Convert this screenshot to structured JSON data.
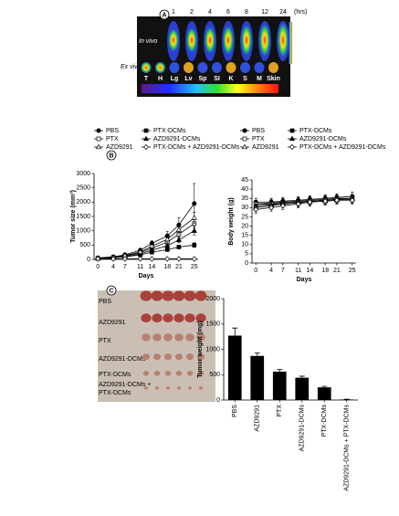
{
  "panel_labels": [
    "A",
    "B",
    "C"
  ],
  "panel_a": {
    "time_labels": [
      "1",
      "2",
      "4",
      "6",
      "8",
      "12",
      "24"
    ],
    "time_unit": "(hrs)",
    "row_labels": [
      "In vivo",
      "Ex vivo"
    ],
    "organ_labels": [
      "T",
      "H",
      "Lg",
      "Lv",
      "Sp",
      "SI",
      "K",
      "S",
      "M",
      "Skin"
    ]
  },
  "panel_c": {
    "labels": [
      "PBS",
      "AZD9291",
      "PTX",
      "AZD9291-DCMs",
      "PTX-DCMs",
      "AZD9291-DCMs +",
      "PTX-DCMs"
    ]
  },
  "chart_data": [
    {
      "type": "line",
      "ylabel": "Tumor size (mm³)",
      "xlabel": "Days",
      "x": [
        0,
        4,
        7,
        11,
        14,
        18,
        21,
        25
      ],
      "xlim": [
        -1,
        26
      ],
      "xticks": [
        0,
        4,
        7,
        11,
        14,
        18,
        21,
        25
      ],
      "ylim": [
        0,
        3000
      ],
      "yticks": [
        0,
        500,
        1000,
        1500,
        2000,
        2500,
        3000
      ],
      "series": [
        {
          "name": "PBS",
          "marker": "circle",
          "filled": true,
          "color": "#000",
          "values": [
            50,
            90,
            160,
            320,
            560,
            820,
            1200,
            1950
          ],
          "errors": [
            10,
            20,
            30,
            60,
            90,
            150,
            250,
            700
          ]
        },
        {
          "name": "PTX-DCMs",
          "marker": "square",
          "filled": true,
          "color": "#000",
          "values": [
            30,
            50,
            90,
            160,
            250,
            340,
            430,
            500
          ],
          "errors": [
            5,
            10,
            20,
            30,
            40,
            50,
            60,
            80
          ]
        },
        {
          "name": "PTX",
          "marker": "square",
          "filled": false,
          "color": "#000",
          "values": [
            40,
            70,
            120,
            230,
            390,
            600,
            880,
            1250
          ],
          "errors": [
            8,
            15,
            25,
            40,
            60,
            90,
            130,
            150
          ]
        },
        {
          "name": "AZD9291-DCMs",
          "marker": "triangle",
          "filled": true,
          "color": "#000",
          "values": [
            35,
            60,
            100,
            190,
            320,
            480,
            680,
            1000
          ],
          "errors": [
            5,
            10,
            20,
            30,
            50,
            70,
            100,
            150
          ]
        },
        {
          "name": "AZD9291",
          "marker": "triangle",
          "filled": false,
          "color": "#000",
          "values": [
            40,
            75,
            135,
            260,
            460,
            700,
            1040,
            1450
          ],
          "errors": [
            8,
            15,
            25,
            45,
            70,
            100,
            150,
            200
          ]
        },
        {
          "name": "PTX-DCMs + AZD9291-DCMs",
          "marker": "diamond",
          "filled": false,
          "color": "#000",
          "values": [
            20,
            20,
            20,
            20,
            20,
            20,
            20,
            20
          ],
          "errors": [
            3,
            3,
            3,
            3,
            3,
            3,
            3,
            3
          ]
        }
      ]
    },
    {
      "type": "line",
      "ylabel": "Body weight (g)",
      "xlabel": "Days",
      "x": [
        0,
        4,
        7,
        11,
        14,
        18,
        21,
        25
      ],
      "xlim": [
        -1,
        26
      ],
      "xticks": [
        0,
        4,
        7,
        11,
        14,
        18,
        21,
        25
      ],
      "ylim": [
        0,
        45
      ],
      "yticks": [
        0,
        5,
        10,
        15,
        20,
        25,
        30,
        35,
        40,
        45
      ],
      "series": [
        {
          "name": "PBS",
          "marker": "circle",
          "filled": true,
          "color": "#000",
          "values": [
            33,
            33,
            33.5,
            34,
            34.5,
            35,
            35.5,
            36
          ],
          "errors": [
            2,
            2,
            2,
            2,
            2,
            2,
            2,
            2.5
          ]
        },
        {
          "name": "PTX-DCMs",
          "marker": "square",
          "filled": true,
          "color": "#000",
          "values": [
            32,
            32.5,
            33,
            33.5,
            34,
            34.5,
            35,
            35
          ],
          "errors": [
            2,
            2,
            2,
            2,
            2,
            2,
            2,
            2
          ]
        },
        {
          "name": "PTX",
          "marker": "square",
          "filled": false,
          "color": "#000",
          "values": [
            32,
            32,
            32.5,
            33,
            33.5,
            34,
            34.5,
            35
          ],
          "errors": [
            2,
            2,
            2,
            2,
            2,
            2,
            2,
            2
          ]
        },
        {
          "name": "AZD9291-DCMs",
          "marker": "triangle",
          "filled": true,
          "color": "#000",
          "values": [
            31,
            31.5,
            32.5,
            33,
            33.5,
            34,
            34.5,
            35
          ],
          "errors": [
            2,
            2,
            2,
            2,
            2,
            2,
            2,
            2
          ]
        },
        {
          "name": "AZD9291",
          "marker": "triangle",
          "filled": false,
          "color": "#000",
          "values": [
            30,
            31,
            32,
            32.5,
            33,
            33.5,
            34,
            34.5
          ],
          "errors": [
            2,
            2,
            2,
            2,
            2,
            2,
            2,
            2
          ]
        },
        {
          "name": "PTX-DCMs + AZD9291-DCMs",
          "marker": "diamond",
          "filled": false,
          "color": "#000",
          "values": [
            29,
            30,
            31,
            32,
            33,
            33.5,
            34,
            34
          ],
          "errors": [
            2,
            2,
            2,
            2,
            2,
            2,
            2,
            2
          ]
        }
      ]
    },
    {
      "type": "bar",
      "ylabel": "Tumor weight (mg)",
      "categories": [
        "PBS",
        "AZD9291",
        "PTX",
        "AZD9291-DCMs",
        "PTX-DCMs",
        "AZD9291-DCMs + PTX-DCMs"
      ],
      "values": [
        1270,
        870,
        560,
        440,
        250,
        10
      ],
      "errors": [
        150,
        60,
        40,
        30,
        20,
        5
      ],
      "color": "#000",
      "ylim": [
        0,
        2000
      ],
      "yticks": [
        0,
        500,
        1000,
        1500,
        2000
      ]
    }
  ]
}
